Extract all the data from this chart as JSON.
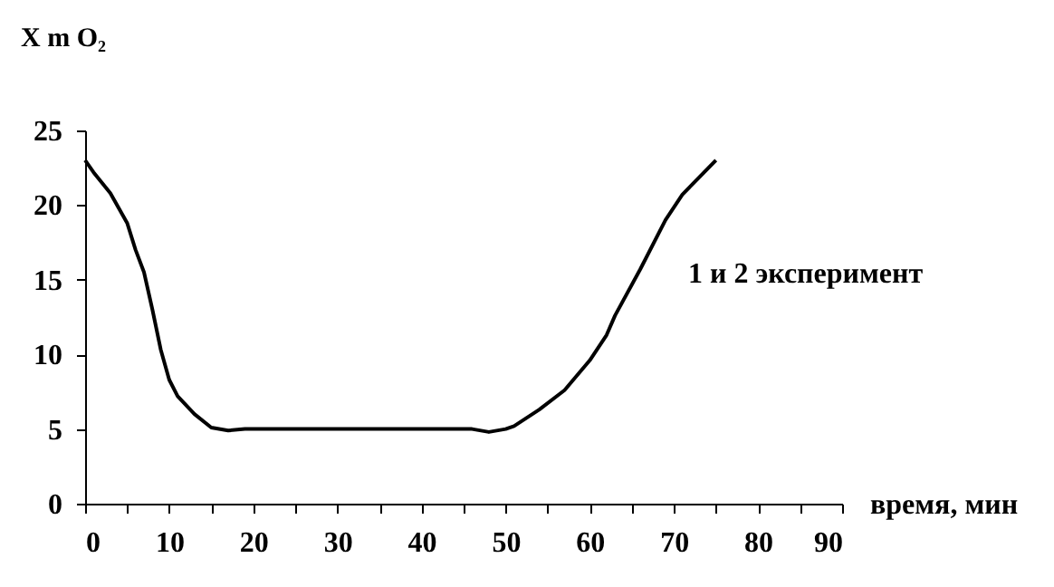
{
  "chart_data": {
    "type": "line",
    "ylabel": "X m O₂",
    "xlabel": "время, мин",
    "annotations": [
      "1 и 2 эксперимент"
    ],
    "x": [
      0,
      1,
      3,
      5,
      6,
      7,
      8,
      9,
      10,
      11,
      13,
      15,
      17,
      19,
      25,
      45,
      46,
      48,
      50,
      51,
      54,
      57,
      60,
      62,
      63,
      66,
      69,
      71,
      75
    ],
    "series": [
      {
        "color": "#000000",
        "values": [
          23,
          22.2,
          20.8,
          18.8,
          17,
          15.5,
          13,
          10.3,
          8.3,
          7.2,
          6,
          5.1,
          4.9,
          5,
          5,
          5,
          5,
          4.8,
          5,
          5.2,
          6.3,
          7.6,
          9.6,
          11.3,
          12.6,
          15.7,
          19,
          20.7,
          23
        ]
      }
    ],
    "xlim": [
      0,
      90
    ],
    "ylim": [
      0,
      25
    ],
    "xticks": [
      0,
      {
        "value": 5,
        "label": null
      },
      10,
      {
        "value": 15,
        "label": null
      },
      20,
      {
        "value": 25,
        "label": null
      },
      30,
      {
        "value": 35,
        "label": null
      },
      40,
      {
        "value": 45,
        "label": null
      },
      50,
      {
        "value": 55,
        "label": null
      },
      60,
      {
        "value": 65,
        "label": null
      },
      70,
      {
        "value": 75,
        "label": null
      },
      80,
      {
        "value": 85,
        "label": null
      },
      90
    ],
    "yticks": [
      0,
      5,
      10,
      15,
      20,
      25
    ],
    "grid": false,
    "marker": "none",
    "line_style": "solid"
  }
}
